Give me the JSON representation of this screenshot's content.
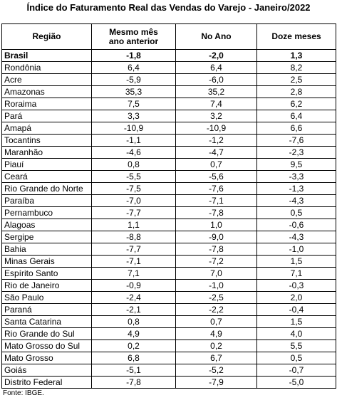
{
  "header": {
    "title": "Índice do Faturamento Real das Vendas do Varejo - Janeiro/2022"
  },
  "table": {
    "columns": [
      "Região",
      "Mesmo mês ano anterior",
      "No Ano",
      "Doze meses"
    ],
    "rows": [
      [
        "Brasil",
        "-1,8",
        "-2,0",
        "1,3"
      ],
      [
        "Rondônia",
        "6,4",
        "6,4",
        "8,2"
      ],
      [
        "Acre",
        "-5,9",
        "-6,0",
        "2,5"
      ],
      [
        "Amazonas",
        "35,3",
        "35,2",
        "2,8"
      ],
      [
        "Roraima",
        "7,5",
        "7,4",
        "6,2"
      ],
      [
        "Pará",
        "3,3",
        "3,2",
        "6,4"
      ],
      [
        "Amapá",
        "-10,9",
        "-10,9",
        "6,6"
      ],
      [
        "Tocantins",
        "-1,1",
        "-1,2",
        "-7,6"
      ],
      [
        "Maranhão",
        "-4,6",
        "-4,7",
        "-2,3"
      ],
      [
        "Piauí",
        "0,8",
        "0,7",
        "9,5"
      ],
      [
        "Ceará",
        "-5,5",
        "-5,6",
        "-3,3"
      ],
      [
        "Rio Grande do Norte",
        "-7,5",
        "-7,6",
        "-1,3"
      ],
      [
        "Paraíba",
        "-7,0",
        "-7,1",
        "-4,3"
      ],
      [
        "Pernambuco",
        "-7,7",
        "-7,8",
        "0,5"
      ],
      [
        "Alagoas",
        "1,1",
        "1,0",
        "-0,6"
      ],
      [
        "Sergipe",
        "-8,8",
        "-9,0",
        "-4,3"
      ],
      [
        "Bahia",
        "-7,7",
        "-7,8",
        "-1,0"
      ],
      [
        "Minas Gerais",
        "-7,1",
        "-7,2",
        "1,5"
      ],
      [
        "Espírito Santo",
        "7,1",
        "7,0",
        "7,1"
      ],
      [
        "Rio de Janeiro",
        "-0,9",
        "-1,0",
        "-0,3"
      ],
      [
        "São Paulo",
        "-2,4",
        "-2,5",
        "2,0"
      ],
      [
        "Paraná",
        "-2,1",
        "-2,2",
        "-0,4"
      ],
      [
        "Santa Catarina",
        "0,8",
        "0,7",
        "1,5"
      ],
      [
        "Rio Grande do Sul",
        "4,9",
        "4,9",
        "4,0"
      ],
      [
        "Mato Grosso do Sul",
        "0,2",
        "0,2",
        "5,5"
      ],
      [
        "Mato Grosso",
        "6,8",
        "6,7",
        "0,5"
      ],
      [
        "Goiás",
        "-5,1",
        "-5,2",
        "-0,7"
      ],
      [
        "Distrito Federal",
        "-7,8",
        "-7,9",
        "-5,0"
      ]
    ]
  },
  "footer": {
    "source": "Fonte: IBGE."
  }
}
